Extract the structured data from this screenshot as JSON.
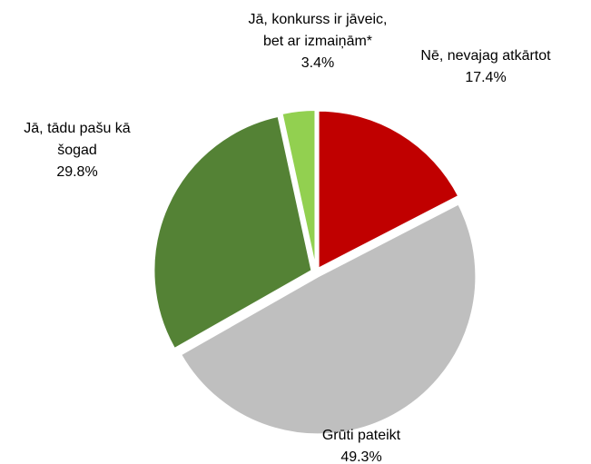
{
  "chart_data": {
    "type": "pie",
    "categories": [
      "Nē, nevajag atkārtot",
      "Grūti pateikt",
      "Jā, tādu pašu kā\nšogad",
      "Jā, konkurss ir jāveic,\nbet ar izmaiņām*"
    ],
    "values": [
      17.4,
      49.3,
      29.8,
      3.4
    ],
    "value_labels": [
      "17.4%",
      "49.3%",
      "29.8%",
      "3.4%"
    ],
    "colors": [
      "#c00000",
      "#bfbfbf",
      "#548235",
      "#92d050"
    ]
  }
}
